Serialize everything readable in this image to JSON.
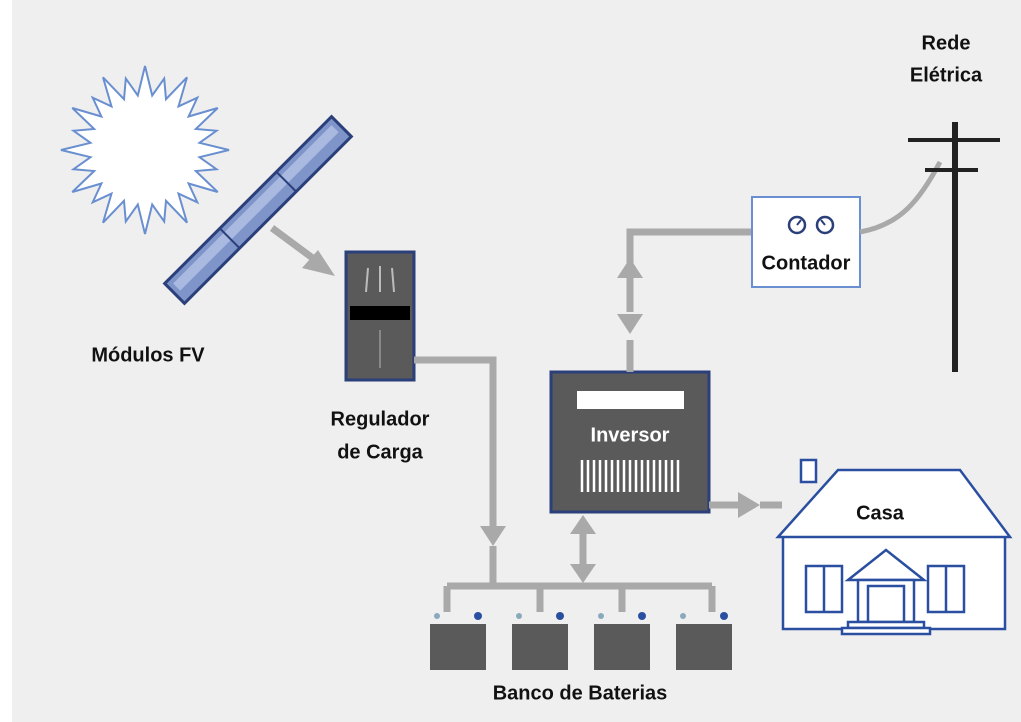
{
  "nodes": [
    {
      "label": "Módulos FV"
    },
    {
      "label_lines": [
        "Regulador",
        "de Carga"
      ]
    },
    {
      "label": "Inversor"
    },
    {
      "label": "Contador"
    },
    {
      "label_lines": [
        "Rede",
        "Elétrica"
      ]
    },
    {
      "label": "Casa"
    },
    {
      "label": "Banco de Baterias"
    }
  ]
}
